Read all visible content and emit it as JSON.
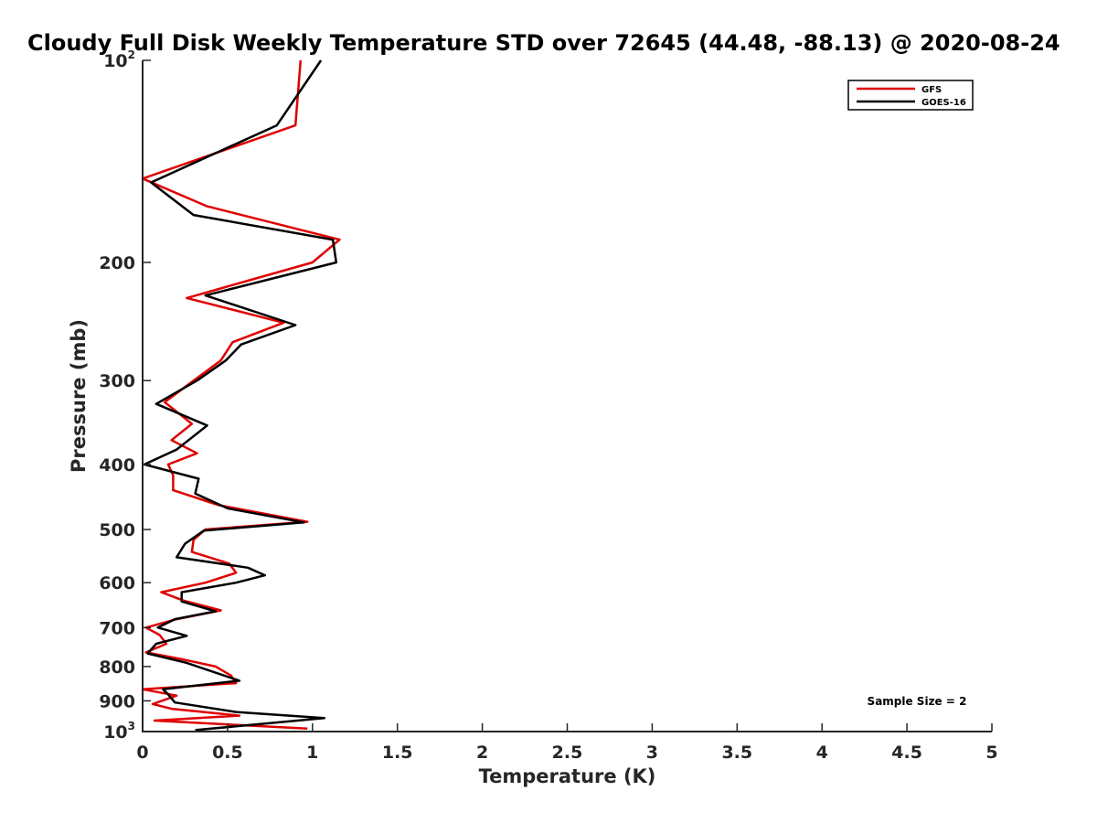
{
  "chart_data": {
    "type": "line",
    "title": "Cloudy Full Disk Weekly Temperature STD over 72645 (44.48, -88.13) @ 2020-08-24",
    "xlabel": "Temperature (K)",
    "ylabel": "Pressure (mb)",
    "xlim": [
      0,
      5
    ],
    "ylim": [
      100,
      1000
    ],
    "y_scale": "log",
    "y_reversed": true,
    "x_ticks": [
      "0",
      "0.5",
      "1",
      "1.5",
      "2",
      "2.5",
      "3",
      "3.5",
      "4",
      "4.5",
      "5"
    ],
    "y_ticks": [
      {
        "value": 100,
        "label": "10",
        "sup": "2"
      },
      {
        "value": 200,
        "label": "200",
        "sup": ""
      },
      {
        "value": 300,
        "label": "300",
        "sup": ""
      },
      {
        "value": 400,
        "label": "400",
        "sup": ""
      },
      {
        "value": 500,
        "label": "500",
        "sup": ""
      },
      {
        "value": 600,
        "label": "600",
        "sup": ""
      },
      {
        "value": 700,
        "label": "700",
        "sup": ""
      },
      {
        "value": 800,
        "label": "800",
        "sup": ""
      },
      {
        "value": 900,
        "label": "900",
        "sup": ""
      },
      {
        "value": 1000,
        "label": "10",
        "sup": "3"
      }
    ],
    "grid": false,
    "legend_position": "top-right",
    "series": [
      {
        "name": "GFS",
        "color": "#e00000",
        "points": [
          [
            0.93,
            100
          ],
          [
            0.9,
            125
          ],
          [
            0.0,
            150
          ],
          [
            0.38,
            165
          ],
          [
            1.16,
            185
          ],
          [
            1.0,
            200
          ],
          [
            0.26,
            226
          ],
          [
            0.83,
            246
          ],
          [
            0.53,
            263
          ],
          [
            0.46,
            280
          ],
          [
            0.3,
            300
          ],
          [
            0.13,
            323
          ],
          [
            0.29,
            348
          ],
          [
            0.17,
            368
          ],
          [
            0.32,
            385
          ],
          [
            0.15,
            400
          ],
          [
            0.18,
            415
          ],
          [
            0.18,
            437
          ],
          [
            0.45,
            460
          ],
          [
            0.97,
            487
          ],
          [
            0.37,
            500
          ],
          [
            0.3,
            518
          ],
          [
            0.29,
            540
          ],
          [
            0.51,
            562
          ],
          [
            0.55,
            580
          ],
          [
            0.37,
            600
          ],
          [
            0.11,
            620
          ],
          [
            0.24,
            638
          ],
          [
            0.46,
            660
          ],
          [
            0.2,
            680
          ],
          [
            0.02,
            700
          ],
          [
            0.1,
            718
          ],
          [
            0.14,
            740
          ],
          [
            0.02,
            762
          ],
          [
            0.23,
            780
          ],
          [
            0.43,
            800
          ],
          [
            0.52,
            825
          ],
          [
            0.55,
            847
          ],
          [
            0.0,
            865
          ],
          [
            0.2,
            884
          ],
          [
            0.06,
            910
          ],
          [
            0.17,
            925
          ],
          [
            0.57,
            947
          ],
          [
            0.07,
            963
          ],
          [
            0.97,
            990
          ]
        ]
      },
      {
        "name": "GOES-16",
        "color": "#000000",
        "points": [
          [
            1.05,
            100
          ],
          [
            0.79,
            125
          ],
          [
            0.05,
            152
          ],
          [
            0.3,
            170
          ],
          [
            1.12,
            185
          ],
          [
            1.14,
            200
          ],
          [
            0.37,
            224
          ],
          [
            0.9,
            248
          ],
          [
            0.58,
            265
          ],
          [
            0.49,
            280
          ],
          [
            0.32,
            300
          ],
          [
            0.08,
            325
          ],
          [
            0.38,
            350
          ],
          [
            0.2,
            380
          ],
          [
            0.01,
            400
          ],
          [
            0.33,
            420
          ],
          [
            0.31,
            442
          ],
          [
            0.5,
            465
          ],
          [
            0.95,
            488
          ],
          [
            0.36,
            502
          ],
          [
            0.25,
            525
          ],
          [
            0.2,
            550
          ],
          [
            0.62,
            570
          ],
          [
            0.72,
            585
          ],
          [
            0.55,
            600
          ],
          [
            0.23,
            620
          ],
          [
            0.23,
            640
          ],
          [
            0.43,
            662
          ],
          [
            0.19,
            680
          ],
          [
            0.09,
            700
          ],
          [
            0.26,
            720
          ],
          [
            0.08,
            740
          ],
          [
            0.03,
            765
          ],
          [
            0.26,
            790
          ],
          [
            0.57,
            840
          ],
          [
            0.12,
            865
          ],
          [
            0.15,
            880
          ],
          [
            0.19,
            905
          ],
          [
            0.55,
            935
          ],
          [
            1.07,
            955
          ],
          [
            0.31,
            995
          ]
        ]
      }
    ],
    "annotation": "Sample Size = 2"
  }
}
